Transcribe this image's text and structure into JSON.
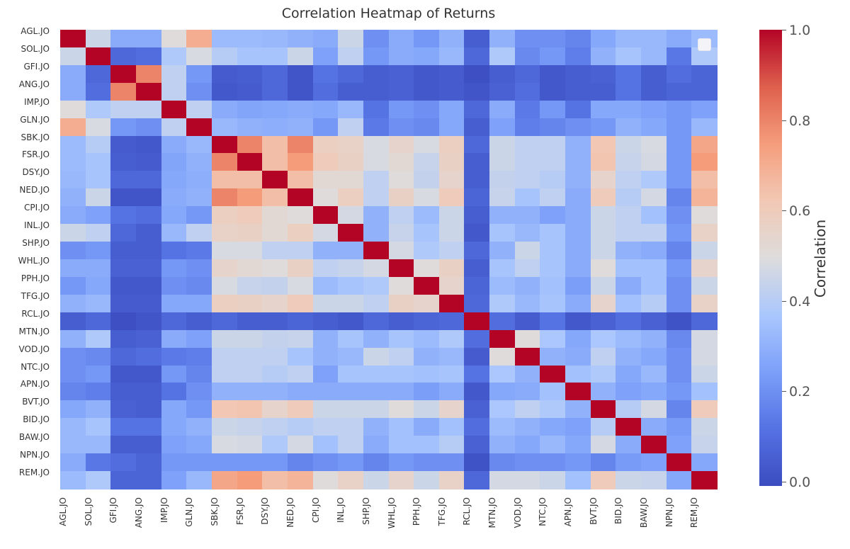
{
  "chart_data": {
    "type": "heatmap",
    "title": "Correlation Heatmap of Returns",
    "labels": [
      "AGL.JO",
      "SOL.JO",
      "GFI.JO",
      "ANG.JO",
      "IMP.JO",
      "GLN.JO",
      "SBK.JO",
      "FSR.JO",
      "DSY.JO",
      "NED.JO",
      "CPI.JO",
      "INL.JO",
      "SHP.JO",
      "WHL.JO",
      "PPH.JO",
      "TFG.JO",
      "RCL.JO",
      "MTN.JO",
      "VOD.JO",
      "NTC.JO",
      "APN.JO",
      "BVT.JO",
      "BID.JO",
      "BAW.JO",
      "NPN.JO",
      "REM.JO"
    ],
    "symmetric": true,
    "matrix_upper": [
      [
        1,
        0.45,
        0.28,
        0.28,
        0.5,
        0.7,
        0.33,
        0.33,
        0.32,
        0.3,
        0.28,
        0.45,
        0.2,
        0.28,
        0.22,
        0.3,
        0.05,
        0.3,
        0.2,
        0.2,
        0.17,
        0.27,
        0.32,
        0.32,
        0.28,
        0.33
      ],
      [
        1,
        0.08,
        0.1,
        0.38,
        0.48,
        0.4,
        0.36,
        0.36,
        0.45,
        0.25,
        0.42,
        0.22,
        0.28,
        0.27,
        0.32,
        0.08,
        0.38,
        0.18,
        0.22,
        0.15,
        0.3,
        0.36,
        0.32,
        0.13,
        0.38
      ],
      [
        1,
        0.8,
        0.42,
        0.22,
        0.04,
        0.05,
        0.08,
        0.02,
        0.12,
        0.08,
        0.05,
        0.06,
        0.03,
        0.04,
        0.0,
        0.05,
        0.08,
        0.03,
        0.05,
        0.06,
        0.12,
        0.05,
        0.1,
        0.07
      ],
      [
        1,
        0.42,
        0.2,
        0.03,
        0.04,
        0.08,
        0.02,
        0.1,
        0.05,
        0.05,
        0.06,
        0.03,
        0.04,
        0.02,
        0.06,
        0.1,
        0.03,
        0.05,
        0.05,
        0.12,
        0.05,
        0.07,
        0.07
      ],
      [
        1,
        0.42,
        0.28,
        0.26,
        0.27,
        0.28,
        0.27,
        0.32,
        0.12,
        0.22,
        0.2,
        0.27,
        0.08,
        0.28,
        0.14,
        0.22,
        0.12,
        0.27,
        0.27,
        0.25,
        0.22,
        0.25
      ],
      [
        1,
        0.32,
        0.3,
        0.29,
        0.3,
        0.22,
        0.42,
        0.14,
        0.2,
        0.18,
        0.27,
        0.05,
        0.25,
        0.15,
        0.17,
        0.2,
        0.22,
        0.3,
        0.27,
        0.22,
        0.32
      ],
      [
        1,
        0.8,
        0.65,
        0.8,
        0.58,
        0.56,
        0.48,
        0.55,
        0.48,
        0.58,
        0.08,
        0.45,
        0.42,
        0.42,
        0.3,
        0.62,
        0.45,
        0.48,
        0.22,
        0.72
      ],
      [
        1,
        0.65,
        0.75,
        0.6,
        0.57,
        0.48,
        0.52,
        0.44,
        0.57,
        0.05,
        0.45,
        0.42,
        0.42,
        0.3,
        0.63,
        0.44,
        0.47,
        0.22,
        0.75
      ],
      [
        1,
        0.65,
        0.52,
        0.52,
        0.42,
        0.5,
        0.43,
        0.55,
        0.05,
        0.43,
        0.42,
        0.4,
        0.3,
        0.55,
        0.42,
        0.38,
        0.22,
        0.65
      ],
      [
        1,
        0.5,
        0.58,
        0.42,
        0.57,
        0.48,
        0.6,
        0.07,
        0.44,
        0.36,
        0.42,
        0.28,
        0.6,
        0.4,
        0.47,
        0.17,
        0.68
      ],
      [
        1,
        0.47,
        0.3,
        0.42,
        0.33,
        0.45,
        0.05,
        0.3,
        0.3,
        0.25,
        0.28,
        0.45,
        0.42,
        0.35,
        0.2,
        0.5
      ],
      [
        1,
        0.3,
        0.44,
        0.36,
        0.45,
        0.03,
        0.36,
        0.32,
        0.36,
        0.28,
        0.45,
        0.42,
        0.42,
        0.22,
        0.56
      ],
      [
        1,
        0.47,
        0.38,
        0.42,
        0.08,
        0.3,
        0.45,
        0.36,
        0.28,
        0.45,
        0.3,
        0.28,
        0.17,
        0.45
      ],
      [
        1,
        0.5,
        0.57,
        0.05,
        0.36,
        0.42,
        0.36,
        0.28,
        0.5,
        0.35,
        0.35,
        0.22,
        0.55
      ],
      [
        1,
        0.55,
        0.07,
        0.33,
        0.3,
        0.35,
        0.24,
        0.45,
        0.28,
        0.35,
        0.2,
        0.45
      ],
      [
        1,
        0.08,
        0.38,
        0.32,
        0.36,
        0.28,
        0.55,
        0.35,
        0.4,
        0.2,
        0.56
      ],
      [
        1,
        0.1,
        0.04,
        0.12,
        0.03,
        0.06,
        0.1,
        0.06,
        0.01,
        0.08
      ],
      [
        1,
        0.5,
        0.37,
        0.27,
        0.37,
        0.33,
        0.3,
        0.18,
        0.47
      ],
      [
        1,
        0.3,
        0.28,
        0.42,
        0.3,
        0.27,
        0.2,
        0.47
      ],
      [
        1,
        0.35,
        0.38,
        0.27,
        0.32,
        0.2,
        0.45
      ],
      [
        1,
        0.3,
        0.25,
        0.27,
        0.22,
        0.35
      ],
      [
        1,
        0.4,
        0.47,
        0.17,
        0.6
      ],
      [
        1,
        0.28,
        0.23,
        0.45
      ],
      [
        1,
        0.25,
        0.44
      ],
      [
        1,
        0.27
      ],
      [
        1
      ]
    ],
    "colormap": "coolwarm",
    "vmin": -0.01,
    "vmax": 1.0,
    "colorbar": {
      "label": "Correlation",
      "ticks": [
        1.0,
        0.8,
        0.6,
        0.4,
        0.2,
        0.0
      ],
      "tick_labels": [
        "1.0",
        "0.8",
        "0.6",
        "0.4",
        "0.2",
        "0.0"
      ]
    },
    "legend": "top-right (empty)"
  }
}
